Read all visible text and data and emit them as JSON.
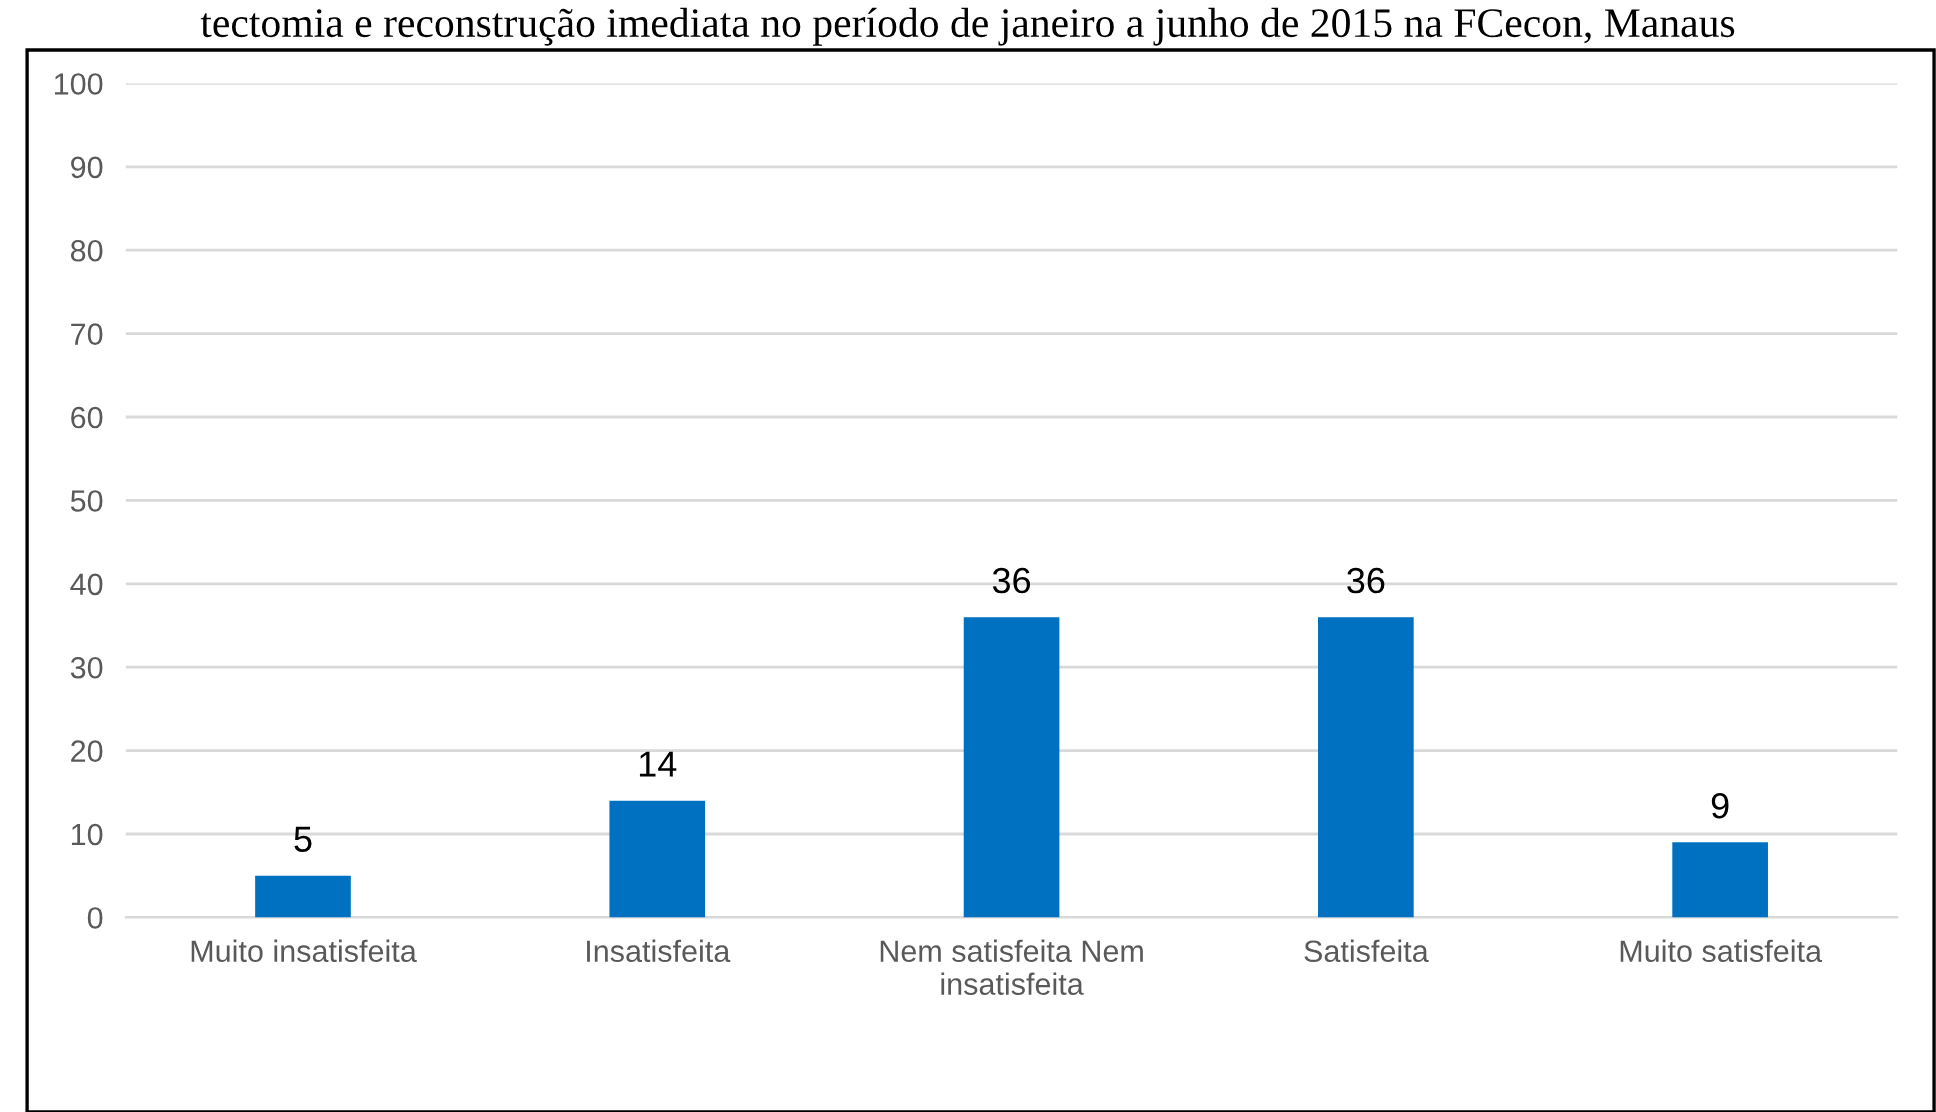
{
  "chart_data": {
    "type": "bar",
    "title": "tectomia e reconstrução imediata no período de janeiro a junho de 2015 na FCecon, Manaus",
    "categories": [
      "Muito insatisfeita",
      "Insatisfeita",
      "Nem satisfeita Nem\ninsatisfeita",
      "Satisfeita",
      "Muito satisfeita"
    ],
    "values": [
      5,
      14,
      36,
      36,
      9
    ],
    "color": "#0070c0",
    "ylim": [
      0,
      100
    ],
    "yticks": [
      0,
      10,
      20,
      30,
      40,
      50,
      60,
      70,
      80,
      90,
      100
    ],
    "grid": "y",
    "data_labels": true
  }
}
